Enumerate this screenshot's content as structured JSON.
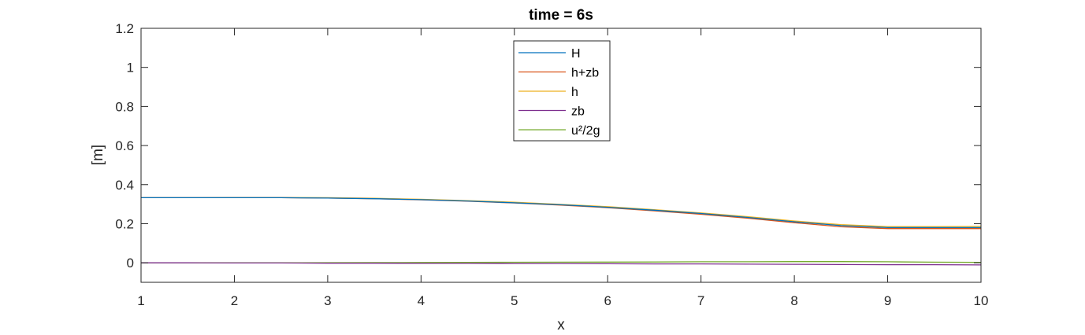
{
  "chart_data": {
    "type": "line",
    "title": "time = 6s",
    "xlabel": "x",
    "ylabel": "[m]",
    "xlim": [
      1,
      10
    ],
    "ylim": [
      -0.1,
      1.2
    ],
    "xticks": [
      1,
      2,
      3,
      4,
      5,
      6,
      7,
      8,
      9,
      10
    ],
    "yticks": [
      0,
      0.2,
      0.4,
      0.6,
      0.8,
      1,
      1.2
    ],
    "xtick_labels": [
      "1",
      "2",
      "3",
      "4",
      "5",
      "6",
      "7",
      "8",
      "9",
      "10"
    ],
    "ytick_labels": [
      "0",
      "0.2",
      "0.4",
      "0.6",
      "0.8",
      "1",
      "1.2"
    ],
    "grid": false,
    "legend_position": "top-center",
    "x": [
      1,
      1.5,
      2,
      2.5,
      3,
      3.5,
      4,
      4.5,
      5,
      5.5,
      6,
      6.5,
      7,
      7.5,
      8,
      8.5,
      9,
      9.5,
      10
    ],
    "series": [
      {
        "name": "H",
        "color": "#0072BD",
        "values": [
          0.333,
          0.333,
          0.333,
          0.333,
          0.331,
          0.328,
          0.323,
          0.316,
          0.307,
          0.297,
          0.284,
          0.269,
          0.252,
          0.232,
          0.21,
          0.19,
          0.18,
          0.18,
          0.18
        ]
      },
      {
        "name": "h+zb",
        "color": "#D95319",
        "values": [
          0.333,
          0.333,
          0.333,
          0.333,
          0.331,
          0.328,
          0.322,
          0.315,
          0.306,
          0.295,
          0.282,
          0.266,
          0.248,
          0.228,
          0.205,
          0.184,
          0.175,
          0.175,
          0.175
        ]
      },
      {
        "name": "h",
        "color": "#EDB120",
        "values": [
          0.333,
          0.333,
          0.334,
          0.334,
          0.333,
          0.33,
          0.325,
          0.318,
          0.31,
          0.299,
          0.287,
          0.272,
          0.255,
          0.236,
          0.214,
          0.195,
          0.185,
          0.185,
          0.186
        ]
      },
      {
        "name": "zb",
        "color": "#7E2F8E",
        "values": [
          0.0,
          0.0,
          -0.001,
          -0.001,
          -0.002,
          -0.002,
          -0.003,
          -0.003,
          -0.004,
          -0.004,
          -0.005,
          -0.006,
          -0.006,
          -0.007,
          -0.008,
          -0.009,
          -0.01,
          -0.01,
          -0.011
        ]
      },
      {
        "name": "u²/2g",
        "color": "#77AC30",
        "values": [
          0.0,
          0.0,
          0.0,
          0.0,
          0.0005,
          0.001,
          0.0015,
          0.002,
          0.0025,
          0.003,
          0.0035,
          0.004,
          0.005,
          0.005,
          0.006,
          0.006,
          0.005,
          0.003,
          0.002
        ]
      }
    ]
  }
}
